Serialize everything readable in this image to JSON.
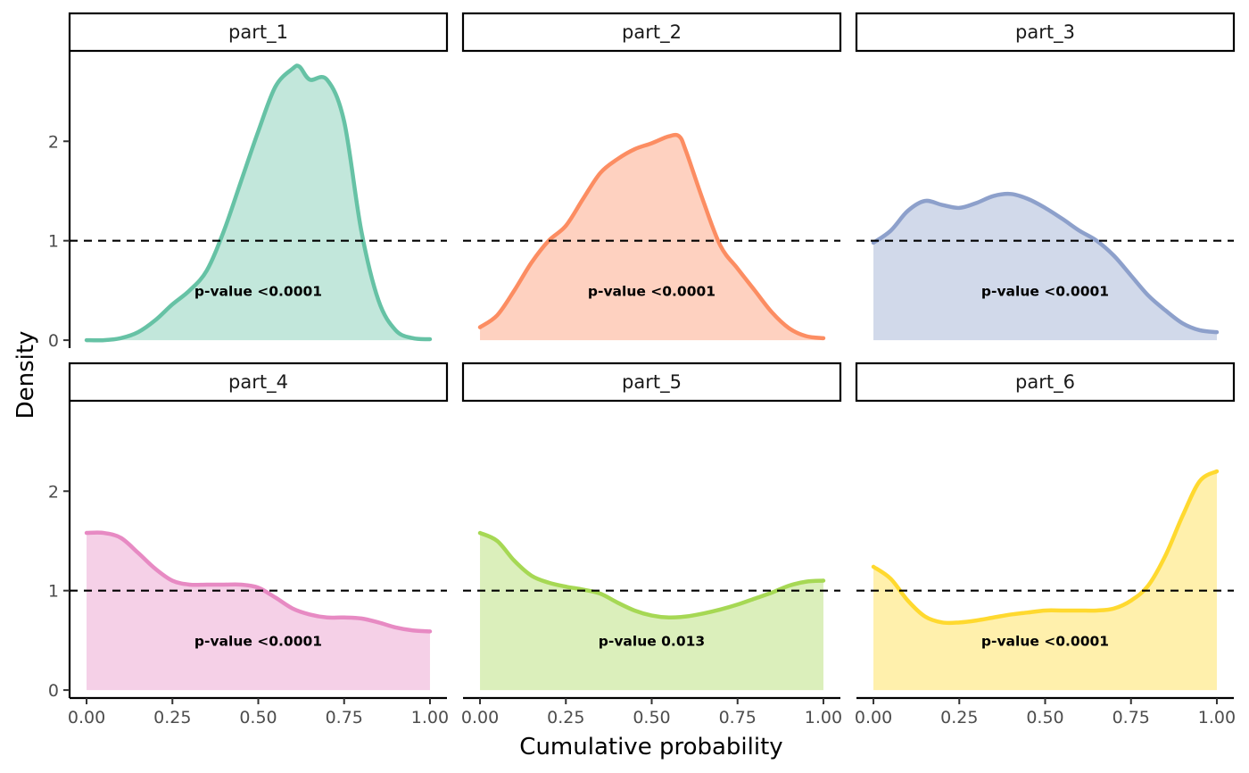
{
  "chart_data": {
    "type": "area",
    "xlabel": "Cumulative probability",
    "ylabel": "Density",
    "xlim": [
      0,
      1
    ],
    "ylim": [
      -0.08,
      2.9
    ],
    "xticks": [
      0,
      0.25,
      0.5,
      0.75,
      1
    ],
    "xtick_labels": [
      "0.00",
      "0.25",
      "0.50",
      "0.75",
      "1.00"
    ],
    "yticks": [
      0,
      1,
      2
    ],
    "ytick_labels": [
      "0",
      "1",
      "2"
    ],
    "reference_line": 1,
    "annotation_x": 0.5,
    "annotation_y": 0.5,
    "facets": [
      {
        "label": "part_1",
        "color": "#66c2a5",
        "annotation": "p-value <0.0001",
        "x": [
          0,
          0.05,
          0.1,
          0.15,
          0.2,
          0.25,
          0.3,
          0.35,
          0.4,
          0.45,
          0.5,
          0.55,
          0.6,
          0.62,
          0.65,
          0.7,
          0.75,
          0.8,
          0.85,
          0.9,
          0.95,
          1
        ],
        "y": [
          0,
          0,
          0.02,
          0.08,
          0.2,
          0.36,
          0.5,
          0.7,
          1.1,
          1.6,
          2.1,
          2.55,
          2.73,
          2.75,
          2.62,
          2.62,
          2.2,
          1.1,
          0.4,
          0.1,
          0.02,
          0.01
        ]
      },
      {
        "label": "part_2",
        "color": "#fc8d62",
        "annotation": "p-value <0.0001",
        "x": [
          0,
          0.05,
          0.1,
          0.15,
          0.2,
          0.25,
          0.3,
          0.35,
          0.4,
          0.45,
          0.5,
          0.55,
          0.58,
          0.6,
          0.65,
          0.7,
          0.75,
          0.8,
          0.85,
          0.9,
          0.95,
          1
        ],
        "y": [
          0.13,
          0.25,
          0.5,
          0.78,
          1.0,
          1.15,
          1.42,
          1.68,
          1.82,
          1.92,
          1.98,
          2.05,
          2.05,
          1.9,
          1.4,
          0.95,
          0.72,
          0.5,
          0.28,
          0.12,
          0.04,
          0.02
        ]
      },
      {
        "label": "part_3",
        "color": "#8da0cb",
        "annotation": "p-value <0.0001",
        "x": [
          0,
          0.05,
          0.1,
          0.15,
          0.2,
          0.25,
          0.3,
          0.35,
          0.4,
          0.45,
          0.5,
          0.55,
          0.6,
          0.65,
          0.7,
          0.75,
          0.8,
          0.85,
          0.9,
          0.95,
          1
        ],
        "y": [
          0.98,
          1.1,
          1.3,
          1.4,
          1.36,
          1.33,
          1.38,
          1.45,
          1.47,
          1.42,
          1.33,
          1.22,
          1.1,
          1.0,
          0.85,
          0.65,
          0.45,
          0.3,
          0.17,
          0.1,
          0.08
        ]
      },
      {
        "label": "part_4",
        "color": "#e78ac3",
        "annotation": "p-value <0.0001",
        "x": [
          0,
          0.05,
          0.1,
          0.15,
          0.2,
          0.25,
          0.3,
          0.35,
          0.4,
          0.45,
          0.5,
          0.55,
          0.6,
          0.65,
          0.7,
          0.75,
          0.8,
          0.85,
          0.9,
          0.95,
          1
        ],
        "y": [
          1.58,
          1.58,
          1.53,
          1.38,
          1.22,
          1.1,
          1.06,
          1.06,
          1.06,
          1.06,
          1.03,
          0.93,
          0.82,
          0.76,
          0.73,
          0.73,
          0.72,
          0.68,
          0.63,
          0.6,
          0.59
        ]
      },
      {
        "label": "part_5",
        "color": "#a6d854",
        "annotation": "p-value 0.013",
        "x": [
          0,
          0.05,
          0.1,
          0.15,
          0.2,
          0.25,
          0.3,
          0.35,
          0.4,
          0.45,
          0.5,
          0.55,
          0.6,
          0.65,
          0.7,
          0.75,
          0.8,
          0.85,
          0.9,
          0.95,
          1
        ],
        "y": [
          1.58,
          1.5,
          1.3,
          1.15,
          1.08,
          1.04,
          1.01,
          0.97,
          0.88,
          0.8,
          0.75,
          0.73,
          0.74,
          0.77,
          0.81,
          0.86,
          0.92,
          0.98,
          1.05,
          1.09,
          1.1
        ]
      },
      {
        "label": "part_6",
        "color": "#ffd92f",
        "annotation": "p-value <0.0001",
        "x": [
          0,
          0.05,
          0.1,
          0.15,
          0.2,
          0.25,
          0.3,
          0.35,
          0.4,
          0.45,
          0.5,
          0.55,
          0.6,
          0.65,
          0.7,
          0.75,
          0.8,
          0.85,
          0.9,
          0.95,
          1
        ],
        "y": [
          1.24,
          1.12,
          0.9,
          0.74,
          0.68,
          0.68,
          0.7,
          0.73,
          0.76,
          0.78,
          0.8,
          0.8,
          0.8,
          0.8,
          0.82,
          0.9,
          1.05,
          1.35,
          1.75,
          2.1,
          2.2
        ]
      }
    ]
  }
}
